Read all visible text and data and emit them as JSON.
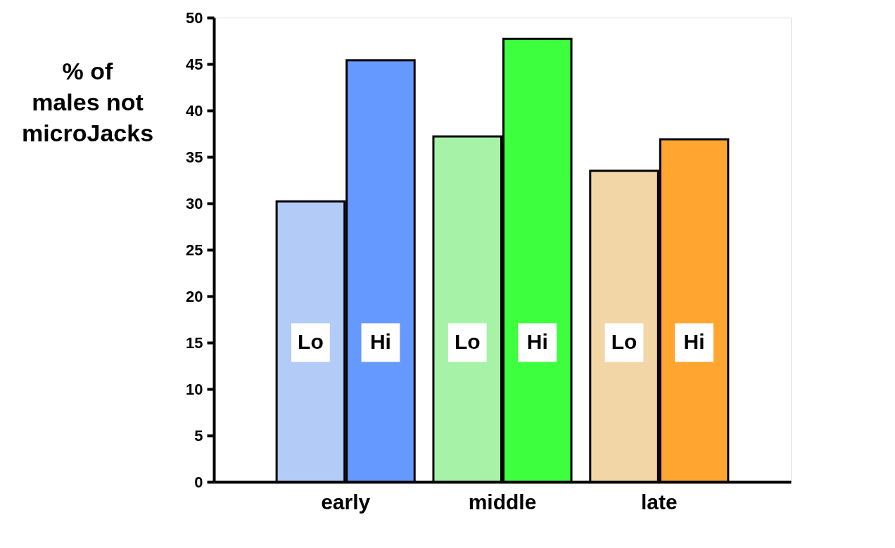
{
  "chart_data": {
    "type": "bar",
    "ylabel": "% of males not microJacks",
    "categories": [
      "early",
      "middle",
      "late"
    ],
    "series": [
      {
        "name": "Lo",
        "colors": [
          "#b3cbf7",
          "#a6f2a6",
          "#f2d6a6"
        ],
        "values": [
          30.2,
          37.2,
          33.5
        ]
      },
      {
        "name": "Hi",
        "colors": [
          "#6699ff",
          "#3dff3d",
          "#ffa530"
        ],
        "values": [
          45.4,
          47.7,
          36.9
        ]
      }
    ],
    "ylim": [
      0,
      50
    ],
    "yticks": [
      0,
      5,
      10,
      15,
      20,
      25,
      30,
      35,
      40,
      45,
      50
    ],
    "grid": false,
    "legend": false
  }
}
